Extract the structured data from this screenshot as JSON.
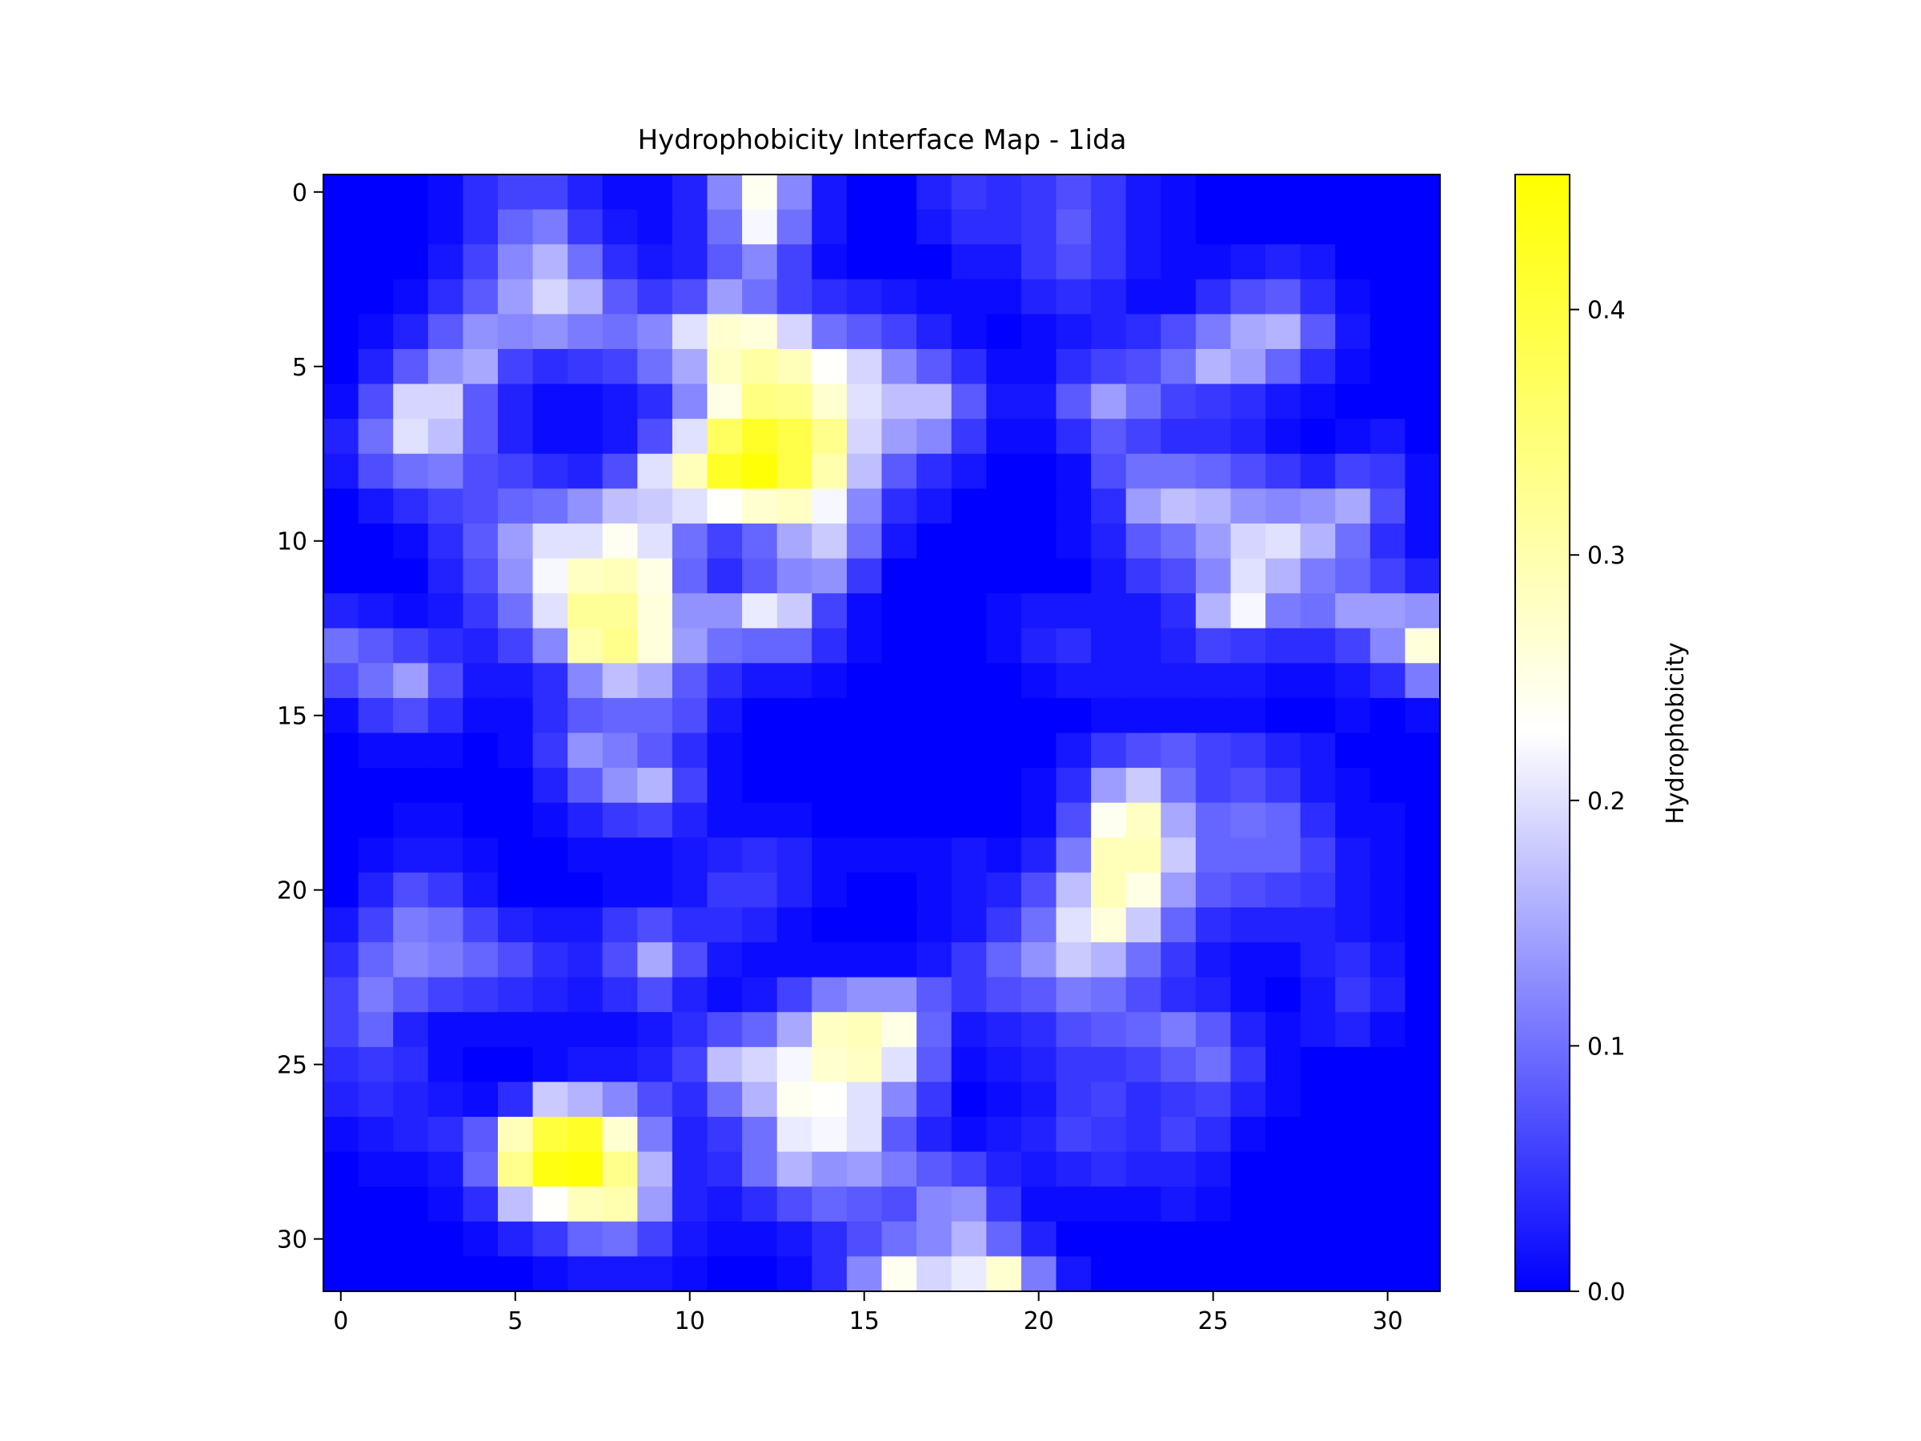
{
  "chart_data": {
    "type": "heatmap",
    "title": "Hydrophobicity Interface Map - 1ida",
    "xlabel": "",
    "ylabel": "",
    "x_ticks": [
      0,
      5,
      10,
      15,
      20,
      25,
      30
    ],
    "y_ticks": [
      0,
      5,
      10,
      15,
      20,
      25,
      30
    ],
    "xlim": [
      -0.5,
      31.5
    ],
    "ylim": [
      31.5,
      -0.5
    ],
    "grid": false,
    "colorbar": {
      "label": "Hydrophobicity",
      "min": 0.0,
      "max": 0.455,
      "ticks": [
        0.0,
        0.1,
        0.2,
        0.3,
        0.4
      ],
      "tick_labels": [
        "0.0",
        "0.1",
        "0.2",
        "0.3",
        "0.4"
      ],
      "colors": [
        "#0000ff",
        "#ffffff",
        "#ffff00"
      ]
    },
    "matrix": [
      [
        0.0,
        0.0,
        0.0,
        0.01,
        0.04,
        0.06,
        0.06,
        0.03,
        0.01,
        0.01,
        0.03,
        0.12,
        0.24,
        0.12,
        0.02,
        0.0,
        0.0,
        0.03,
        0.05,
        0.04,
        0.05,
        0.07,
        0.05,
        0.02,
        0.01,
        0.0,
        0.0,
        0.0,
        0.0,
        0.0,
        0.0,
        0.0
      ],
      [
        0.0,
        0.0,
        0.0,
        0.01,
        0.04,
        0.09,
        0.11,
        0.05,
        0.02,
        0.01,
        0.03,
        0.1,
        0.22,
        0.1,
        0.02,
        0.0,
        0.0,
        0.02,
        0.04,
        0.04,
        0.05,
        0.08,
        0.05,
        0.02,
        0.01,
        0.0,
        0.0,
        0.0,
        0.0,
        0.0,
        0.0,
        0.0
      ],
      [
        0.0,
        0.0,
        0.0,
        0.02,
        0.06,
        0.12,
        0.16,
        0.1,
        0.04,
        0.02,
        0.03,
        0.08,
        0.12,
        0.06,
        0.01,
        0.0,
        0.0,
        0.0,
        0.02,
        0.02,
        0.05,
        0.07,
        0.05,
        0.02,
        0.01,
        0.01,
        0.02,
        0.03,
        0.02,
        0.0,
        0.0,
        0.0
      ],
      [
        0.0,
        0.0,
        0.01,
        0.04,
        0.08,
        0.14,
        0.19,
        0.16,
        0.08,
        0.05,
        0.07,
        0.14,
        0.1,
        0.06,
        0.04,
        0.03,
        0.02,
        0.01,
        0.01,
        0.01,
        0.03,
        0.04,
        0.03,
        0.01,
        0.01,
        0.04,
        0.07,
        0.08,
        0.04,
        0.01,
        0.0,
        0.0
      ],
      [
        0.0,
        0.01,
        0.03,
        0.08,
        0.13,
        0.12,
        0.13,
        0.11,
        0.1,
        0.12,
        0.2,
        0.27,
        0.26,
        0.19,
        0.1,
        0.08,
        0.06,
        0.03,
        0.01,
        0.0,
        0.01,
        0.02,
        0.03,
        0.04,
        0.07,
        0.11,
        0.15,
        0.16,
        0.08,
        0.02,
        0.0,
        0.0
      ],
      [
        0.0,
        0.03,
        0.08,
        0.13,
        0.15,
        0.06,
        0.04,
        0.05,
        0.06,
        0.1,
        0.15,
        0.28,
        0.31,
        0.29,
        0.23,
        0.19,
        0.12,
        0.08,
        0.04,
        0.01,
        0.01,
        0.04,
        0.06,
        0.07,
        0.1,
        0.16,
        0.14,
        0.09,
        0.04,
        0.01,
        0.0,
        0.0
      ],
      [
        0.01,
        0.07,
        0.19,
        0.19,
        0.08,
        0.03,
        0.01,
        0.01,
        0.02,
        0.04,
        0.12,
        0.25,
        0.34,
        0.33,
        0.27,
        0.2,
        0.17,
        0.17,
        0.08,
        0.02,
        0.02,
        0.08,
        0.14,
        0.1,
        0.06,
        0.05,
        0.04,
        0.02,
        0.01,
        0.0,
        0.0,
        0.0
      ],
      [
        0.03,
        0.1,
        0.2,
        0.17,
        0.08,
        0.03,
        0.01,
        0.01,
        0.02,
        0.07,
        0.2,
        0.37,
        0.42,
        0.39,
        0.33,
        0.19,
        0.14,
        0.12,
        0.05,
        0.01,
        0.01,
        0.04,
        0.08,
        0.06,
        0.04,
        0.04,
        0.03,
        0.01,
        0.0,
        0.01,
        0.02,
        0.0
      ],
      [
        0.02,
        0.07,
        0.1,
        0.11,
        0.07,
        0.06,
        0.04,
        0.03,
        0.07,
        0.2,
        0.29,
        0.42,
        0.45,
        0.39,
        0.3,
        0.17,
        0.08,
        0.04,
        0.02,
        0.0,
        0.0,
        0.01,
        0.07,
        0.1,
        0.1,
        0.09,
        0.07,
        0.05,
        0.03,
        0.06,
        0.05,
        0.01
      ],
      [
        0.0,
        0.02,
        0.04,
        0.06,
        0.07,
        0.09,
        0.1,
        0.13,
        0.17,
        0.18,
        0.2,
        0.23,
        0.27,
        0.28,
        0.22,
        0.12,
        0.04,
        0.02,
        0.0,
        0.0,
        0.0,
        0.01,
        0.04,
        0.14,
        0.17,
        0.16,
        0.13,
        0.12,
        0.13,
        0.15,
        0.07,
        0.01
      ],
      [
        0.0,
        0.0,
        0.01,
        0.04,
        0.08,
        0.14,
        0.2,
        0.2,
        0.24,
        0.2,
        0.1,
        0.06,
        0.09,
        0.15,
        0.18,
        0.1,
        0.02,
        0.0,
        0.0,
        0.0,
        0.0,
        0.01,
        0.03,
        0.08,
        0.1,
        0.14,
        0.19,
        0.2,
        0.16,
        0.1,
        0.04,
        0.01
      ],
      [
        0.0,
        0.0,
        0.0,
        0.03,
        0.07,
        0.13,
        0.22,
        0.28,
        0.29,
        0.25,
        0.09,
        0.04,
        0.08,
        0.12,
        0.13,
        0.05,
        0.0,
        0.0,
        0.0,
        0.0,
        0.0,
        0.0,
        0.02,
        0.05,
        0.07,
        0.12,
        0.2,
        0.16,
        0.11,
        0.09,
        0.06,
        0.03
      ],
      [
        0.03,
        0.02,
        0.01,
        0.02,
        0.05,
        0.1,
        0.2,
        0.32,
        0.32,
        0.26,
        0.13,
        0.13,
        0.21,
        0.18,
        0.06,
        0.01,
        0.0,
        0.0,
        0.0,
        0.01,
        0.02,
        0.02,
        0.02,
        0.02,
        0.04,
        0.16,
        0.22,
        0.11,
        0.1,
        0.14,
        0.14,
        0.13
      ],
      [
        0.1,
        0.08,
        0.06,
        0.04,
        0.03,
        0.06,
        0.12,
        0.3,
        0.33,
        0.26,
        0.14,
        0.1,
        0.09,
        0.09,
        0.04,
        0.01,
        0.0,
        0.0,
        0.0,
        0.01,
        0.03,
        0.04,
        0.02,
        0.02,
        0.03,
        0.06,
        0.05,
        0.04,
        0.04,
        0.06,
        0.12,
        0.26
      ],
      [
        0.07,
        0.1,
        0.14,
        0.07,
        0.02,
        0.02,
        0.04,
        0.12,
        0.17,
        0.15,
        0.08,
        0.04,
        0.02,
        0.02,
        0.01,
        0.0,
        0.0,
        0.0,
        0.0,
        0.0,
        0.01,
        0.02,
        0.02,
        0.02,
        0.02,
        0.02,
        0.02,
        0.01,
        0.01,
        0.02,
        0.04,
        0.11
      ],
      [
        0.01,
        0.05,
        0.07,
        0.04,
        0.01,
        0.01,
        0.04,
        0.08,
        0.09,
        0.09,
        0.07,
        0.02,
        0.0,
        0.0,
        0.0,
        0.0,
        0.0,
        0.0,
        0.0,
        0.0,
        0.0,
        0.0,
        0.01,
        0.01,
        0.01,
        0.01,
        0.01,
        0.0,
        0.0,
        0.01,
        0.0,
        0.01
      ],
      [
        0.0,
        0.01,
        0.01,
        0.01,
        0.0,
        0.01,
        0.05,
        0.13,
        0.11,
        0.08,
        0.04,
        0.01,
        0.0,
        0.0,
        0.0,
        0.0,
        0.0,
        0.0,
        0.0,
        0.0,
        0.0,
        0.02,
        0.05,
        0.07,
        0.08,
        0.06,
        0.05,
        0.03,
        0.02,
        0.0,
        0.0,
        0.0
      ],
      [
        0.0,
        0.0,
        0.0,
        0.0,
        0.0,
        0.0,
        0.03,
        0.08,
        0.13,
        0.16,
        0.06,
        0.01,
        0.0,
        0.0,
        0.0,
        0.0,
        0.0,
        0.0,
        0.0,
        0.0,
        0.01,
        0.04,
        0.14,
        0.18,
        0.1,
        0.06,
        0.07,
        0.05,
        0.02,
        0.01,
        0.0,
        0.0
      ],
      [
        0.0,
        0.0,
        0.01,
        0.01,
        0.0,
        0.0,
        0.01,
        0.03,
        0.05,
        0.06,
        0.03,
        0.01,
        0.01,
        0.01,
        0.0,
        0.0,
        0.0,
        0.0,
        0.0,
        0.0,
        0.01,
        0.07,
        0.24,
        0.28,
        0.15,
        0.09,
        0.1,
        0.09,
        0.04,
        0.01,
        0.01,
        0.0
      ],
      [
        0.0,
        0.01,
        0.02,
        0.02,
        0.01,
        0.0,
        0.0,
        0.01,
        0.01,
        0.01,
        0.02,
        0.03,
        0.04,
        0.03,
        0.01,
        0.01,
        0.01,
        0.01,
        0.02,
        0.01,
        0.03,
        0.11,
        0.29,
        0.29,
        0.18,
        0.09,
        0.09,
        0.09,
        0.06,
        0.02,
        0.01,
        0.0
      ],
      [
        0.0,
        0.03,
        0.07,
        0.05,
        0.02,
        0.0,
        0.0,
        0.0,
        0.01,
        0.01,
        0.02,
        0.05,
        0.05,
        0.03,
        0.01,
        0.0,
        0.0,
        0.01,
        0.02,
        0.03,
        0.07,
        0.17,
        0.29,
        0.25,
        0.14,
        0.08,
        0.07,
        0.06,
        0.05,
        0.02,
        0.01,
        0.0
      ],
      [
        0.02,
        0.06,
        0.11,
        0.1,
        0.06,
        0.03,
        0.02,
        0.02,
        0.05,
        0.07,
        0.04,
        0.04,
        0.03,
        0.01,
        0.0,
        0.0,
        0.0,
        0.01,
        0.02,
        0.05,
        0.1,
        0.2,
        0.26,
        0.18,
        0.09,
        0.04,
        0.03,
        0.03,
        0.03,
        0.02,
        0.01,
        0.0
      ],
      [
        0.04,
        0.09,
        0.12,
        0.11,
        0.09,
        0.07,
        0.04,
        0.03,
        0.07,
        0.15,
        0.07,
        0.02,
        0.01,
        0.01,
        0.01,
        0.01,
        0.01,
        0.02,
        0.05,
        0.09,
        0.13,
        0.18,
        0.16,
        0.1,
        0.05,
        0.02,
        0.01,
        0.01,
        0.03,
        0.04,
        0.02,
        0.0
      ],
      [
        0.06,
        0.11,
        0.08,
        0.06,
        0.05,
        0.04,
        0.03,
        0.02,
        0.04,
        0.07,
        0.03,
        0.01,
        0.02,
        0.06,
        0.11,
        0.13,
        0.13,
        0.08,
        0.05,
        0.07,
        0.08,
        0.11,
        0.1,
        0.07,
        0.04,
        0.03,
        0.01,
        0.0,
        0.02,
        0.05,
        0.03,
        0.0
      ],
      [
        0.06,
        0.09,
        0.03,
        0.01,
        0.01,
        0.01,
        0.01,
        0.01,
        0.01,
        0.02,
        0.04,
        0.07,
        0.09,
        0.15,
        0.28,
        0.29,
        0.25,
        0.09,
        0.02,
        0.03,
        0.04,
        0.07,
        0.08,
        0.09,
        0.11,
        0.08,
        0.03,
        0.01,
        0.02,
        0.03,
        0.01,
        0.0
      ],
      [
        0.04,
        0.05,
        0.04,
        0.01,
        0.0,
        0.0,
        0.01,
        0.02,
        0.02,
        0.03,
        0.06,
        0.17,
        0.19,
        0.22,
        0.27,
        0.28,
        0.2,
        0.08,
        0.01,
        0.02,
        0.03,
        0.05,
        0.05,
        0.06,
        0.08,
        0.1,
        0.05,
        0.01,
        0.0,
        0.0,
        0.0,
        0.0
      ],
      [
        0.03,
        0.04,
        0.03,
        0.02,
        0.01,
        0.04,
        0.18,
        0.16,
        0.12,
        0.07,
        0.04,
        0.1,
        0.16,
        0.24,
        0.23,
        0.2,
        0.12,
        0.05,
        0.0,
        0.01,
        0.02,
        0.05,
        0.06,
        0.04,
        0.05,
        0.06,
        0.03,
        0.01,
        0.0,
        0.0,
        0.0,
        0.0
      ],
      [
        0.01,
        0.02,
        0.03,
        0.04,
        0.08,
        0.29,
        0.4,
        0.42,
        0.27,
        0.11,
        0.03,
        0.05,
        0.1,
        0.21,
        0.22,
        0.2,
        0.08,
        0.03,
        0.01,
        0.02,
        0.03,
        0.06,
        0.05,
        0.04,
        0.06,
        0.04,
        0.01,
        0.0,
        0.0,
        0.0,
        0.0,
        0.0
      ],
      [
        0.0,
        0.01,
        0.01,
        0.02,
        0.09,
        0.33,
        0.44,
        0.45,
        0.33,
        0.16,
        0.03,
        0.04,
        0.1,
        0.16,
        0.13,
        0.14,
        0.11,
        0.08,
        0.06,
        0.03,
        0.02,
        0.03,
        0.04,
        0.03,
        0.03,
        0.02,
        0.0,
        0.0,
        0.0,
        0.0,
        0.0,
        0.0
      ],
      [
        0.0,
        0.0,
        0.0,
        0.01,
        0.04,
        0.17,
        0.23,
        0.29,
        0.3,
        0.14,
        0.03,
        0.02,
        0.04,
        0.07,
        0.09,
        0.08,
        0.07,
        0.12,
        0.13,
        0.05,
        0.01,
        0.01,
        0.01,
        0.01,
        0.02,
        0.01,
        0.0,
        0.0,
        0.0,
        0.0,
        0.0,
        0.0
      ],
      [
        0.0,
        0.0,
        0.0,
        0.0,
        0.01,
        0.03,
        0.05,
        0.09,
        0.1,
        0.06,
        0.02,
        0.01,
        0.01,
        0.02,
        0.04,
        0.07,
        0.1,
        0.12,
        0.16,
        0.09,
        0.03,
        0.0,
        0.0,
        0.0,
        0.0,
        0.0,
        0.0,
        0.0,
        0.0,
        0.0,
        0.0,
        0.0
      ],
      [
        0.0,
        0.0,
        0.0,
        0.0,
        0.0,
        0.0,
        0.01,
        0.02,
        0.02,
        0.02,
        0.01,
        0.0,
        0.0,
        0.01,
        0.04,
        0.12,
        0.24,
        0.19,
        0.21,
        0.27,
        0.11,
        0.02,
        0.0,
        0.0,
        0.0,
        0.0,
        0.0,
        0.0,
        0.0,
        0.0,
        0.0,
        0.0
      ]
    ]
  }
}
